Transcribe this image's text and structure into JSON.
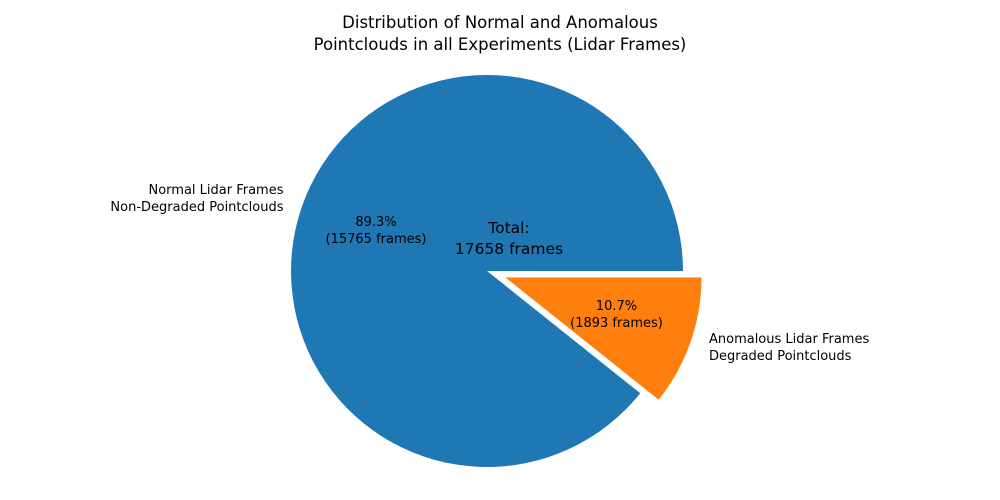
{
  "chart_data": {
    "type": "pie",
    "title": "Distribution of Normal and Anomalous\nPointclouds in all Experiments (Lidar Frames)",
    "total": 17658,
    "center_annotation": "Total:\n17658 frames",
    "start_angle_deg": 0,
    "counterclockwise": true,
    "legend": "none",
    "background_color": "#ffffff",
    "slices": [
      {
        "name": "normal",
        "label": "Normal Lidar Frames\nNon-Degraded Pointclouds",
        "value": 15765,
        "pct": 89.3,
        "pct_label": "89.3%\n(15765 frames)",
        "color": "#1f77b4",
        "explode": 0
      },
      {
        "name": "anomalous",
        "label": "Anomalous Lidar Frames\nDegraded Pointclouds",
        "value": 1893,
        "pct": 10.7,
        "pct_label": "10.7%\n(1893 frames)",
        "color": "#ff7f0e",
        "explode": 0.1
      }
    ]
  }
}
